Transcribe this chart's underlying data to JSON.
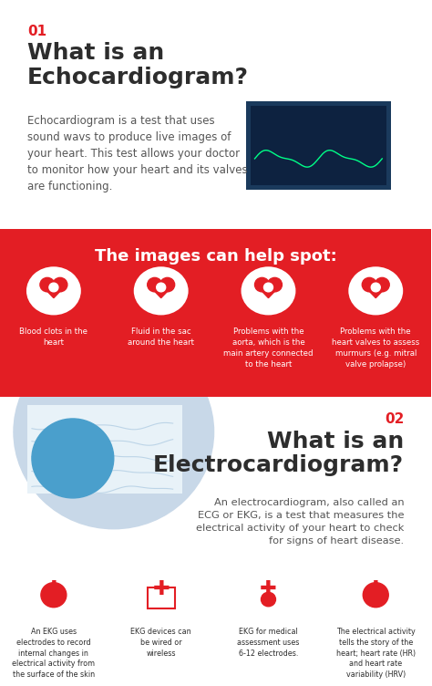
{
  "bg_color": "#ffffff",
  "red_color": "#e31e24",
  "dark_text": "#2d2d2d",
  "gray_text": "#555555",
  "white": "#ffffff",
  "section1_number": "01",
  "section1_title": "What is an\nEchocardiogram?",
  "section1_body": "Echocardiogram is a test that uses\nsound wavs to produce live images of\nyour heart. This test allows your doctor\nto monitor how your heart and its valves\nare functioning.",
  "red_banner_title": "The images can help spot:",
  "red_banner_items": [
    "Blood clots in the\nheart",
    "Fluid in the sac\naround the heart",
    "Problems with the\naorta, which is the\nmain artery connected\nto the heart",
    "Problems with the\nheart valves to assess\nmurmurs (e.g. mitral\nvalve prolapse)"
  ],
  "section2_number": "02",
  "section2_title": "What is an\nElectrocardiogram?",
  "section2_body": "An electrocardiogram, also called an\nECG or EKG, is a test that measures the\nelectrical activity of your heart to check\nfor signs of heart disease.",
  "bottom_items": [
    "An EKG uses\nelectrodes to record\ninternal changes in\nelectrical activity from\nthe surface of the skin",
    "EKG devices can\nbe wired or\nwireless",
    "EKG for medical\nassessment uses\n6-12 electrodes.",
    "The electrical activity\ntells the story of the\nheart; heart rate (HR)\nand heart rate\nvariability (HRV)"
  ]
}
